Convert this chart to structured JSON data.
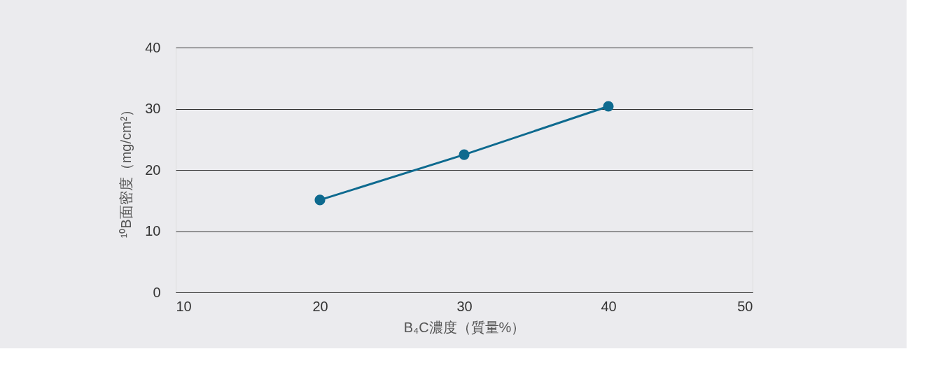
{
  "chart_data": {
    "type": "line",
    "xlabel": "B₄C濃度（質量%）",
    "ylabel": "¹⁰B面密度（mg/cm²）",
    "x": [
      20,
      30,
      40
    ],
    "series": [
      {
        "color": "#0e6a8f",
        "values": [
          15.1,
          22.5,
          30.4
        ]
      }
    ],
    "xlim": [
      10,
      50
    ],
    "xticks": [
      10,
      20,
      30,
      40,
      50
    ],
    "ylim": [
      0,
      40
    ],
    "yticks": [
      0,
      10,
      20,
      30,
      40
    ],
    "grid": "y",
    "marker": "circle",
    "line_style": "solid",
    "legend": false
  }
}
